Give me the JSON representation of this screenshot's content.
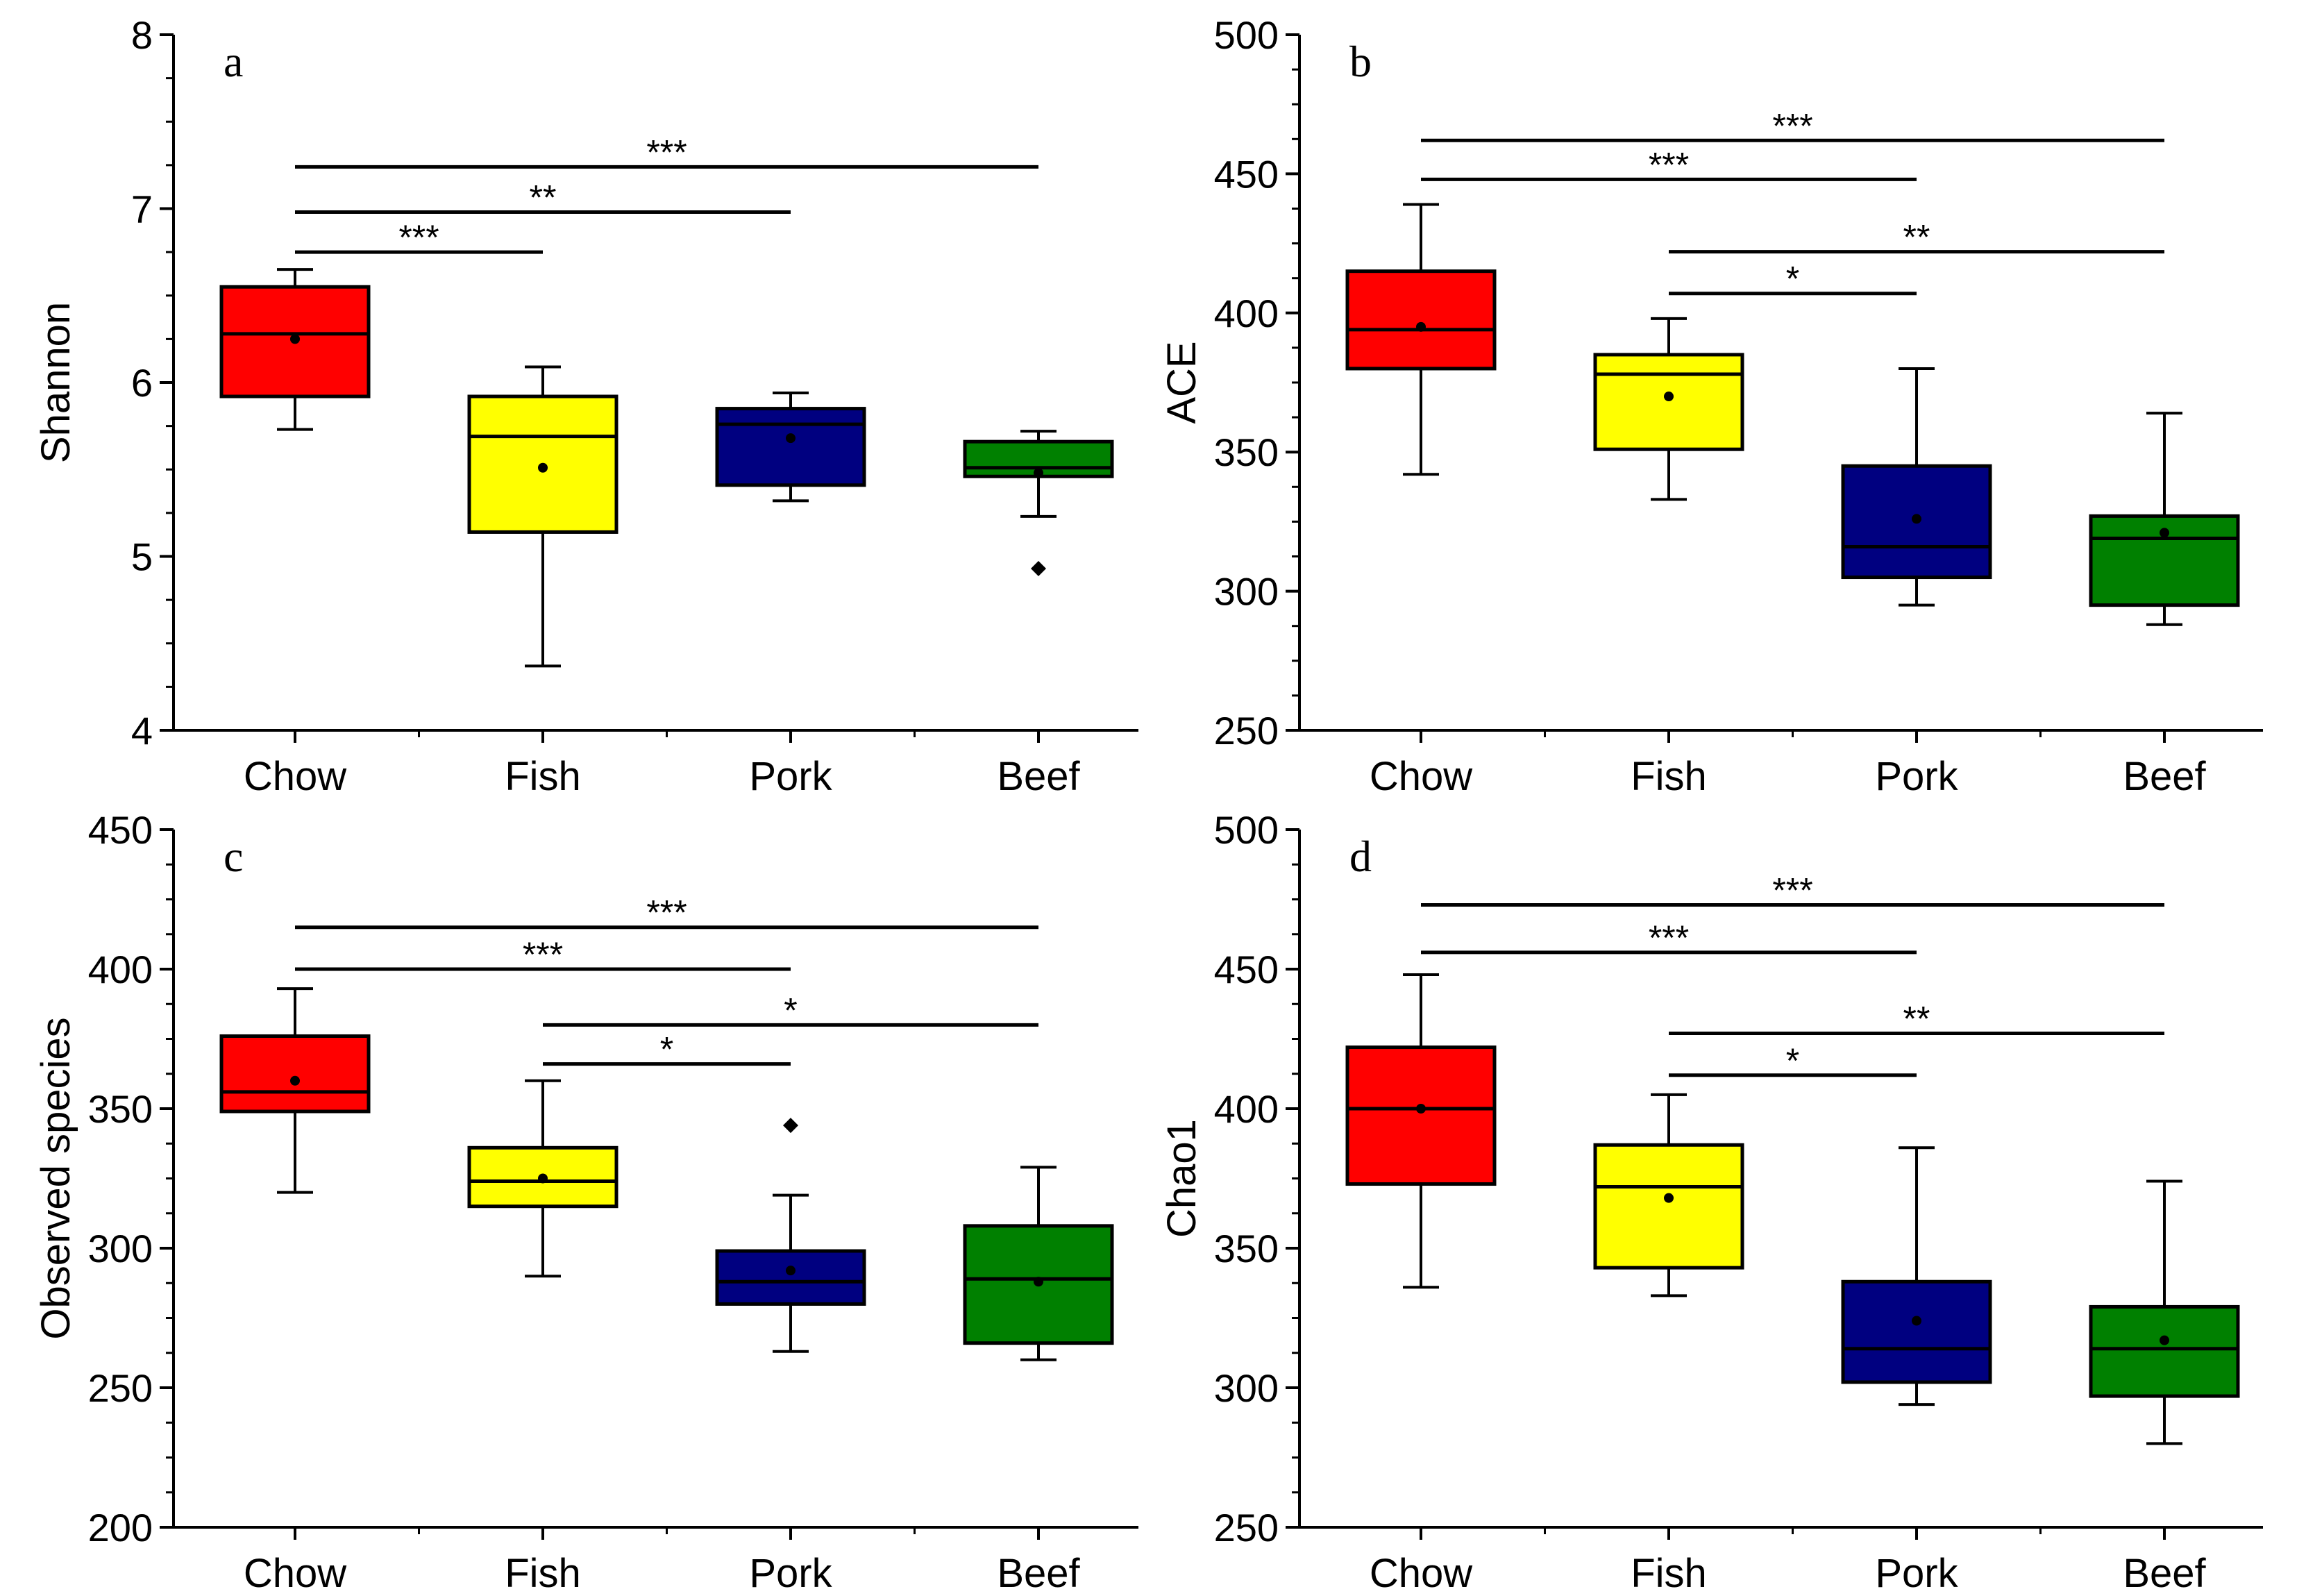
{
  "chart_data": [
    {
      "type": "box",
      "panel": "a",
      "ylabel": "Shannon",
      "ylim": [
        4,
        8
      ],
      "ymajor": [
        4,
        5,
        6,
        7,
        8
      ],
      "categories": [
        "Chow",
        "Fish",
        "Pork",
        "Beef"
      ],
      "colors": [
        "#ff0000",
        "#ffff00",
        "#000080",
        "#008000"
      ],
      "boxes": [
        {
          "whisker_low": 5.73,
          "q1": 5.92,
          "median": 6.28,
          "q3": 6.55,
          "whisker_high": 6.65,
          "mean": 6.25,
          "outliers": []
        },
        {
          "whisker_low": 4.37,
          "q1": 5.14,
          "median": 5.69,
          "q3": 5.92,
          "whisker_high": 6.09,
          "mean": 5.51,
          "outliers": []
        },
        {
          "whisker_low": 5.32,
          "q1": 5.41,
          "median": 5.76,
          "q3": 5.85,
          "whisker_high": 5.94,
          "mean": 5.68,
          "outliers": []
        },
        {
          "whisker_low": 5.23,
          "q1": 5.46,
          "median": 5.51,
          "q3": 5.66,
          "whisker_high": 5.72,
          "mean": 5.48,
          "outliers": [
            4.93
          ]
        }
      ],
      "significance": [
        {
          "from": 0,
          "to": 1,
          "y": 6.75,
          "label": "***"
        },
        {
          "from": 0,
          "to": 2,
          "y": 6.98,
          "label": "**"
        },
        {
          "from": 0,
          "to": 3,
          "y": 7.24,
          "label": "***"
        }
      ]
    },
    {
      "type": "box",
      "panel": "b",
      "ylabel": "ACE",
      "ylim": [
        250,
        500
      ],
      "ymajor": [
        250,
        300,
        350,
        400,
        450,
        500
      ],
      "categories": [
        "Chow",
        "Fish",
        "Pork",
        "Beef"
      ],
      "colors": [
        "#ff0000",
        "#ffff00",
        "#000080",
        "#008000"
      ],
      "boxes": [
        {
          "whisker_low": 342,
          "q1": 380,
          "median": 394,
          "q3": 415,
          "whisker_high": 439,
          "mean": 395,
          "outliers": []
        },
        {
          "whisker_low": 333,
          "q1": 351,
          "median": 378,
          "q3": 385,
          "whisker_high": 398,
          "mean": 370,
          "outliers": []
        },
        {
          "whisker_low": 295,
          "q1": 305,
          "median": 316,
          "q3": 345,
          "whisker_high": 380,
          "mean": 326,
          "outliers": []
        },
        {
          "whisker_low": 288,
          "q1": 295,
          "median": 319,
          "q3": 327,
          "whisker_high": 364,
          "mean": 321,
          "outliers": []
        }
      ],
      "significance": [
        {
          "from": 1,
          "to": 2,
          "y": 407,
          "label": "*"
        },
        {
          "from": 1,
          "to": 3,
          "y": 422,
          "label": "**"
        },
        {
          "from": 0,
          "to": 2,
          "y": 448,
          "label": "***"
        },
        {
          "from": 0,
          "to": 3,
          "y": 462,
          "label": "***"
        }
      ]
    },
    {
      "type": "box",
      "panel": "c",
      "ylabel": "Observed species",
      "ylim": [
        200,
        450
      ],
      "ymajor": [
        200,
        250,
        300,
        350,
        400,
        450
      ],
      "categories": [
        "Chow",
        "Fish",
        "Pork",
        "Beef"
      ],
      "colors": [
        "#ff0000",
        "#ffff00",
        "#000080",
        "#008000"
      ],
      "boxes": [
        {
          "whisker_low": 320,
          "q1": 349,
          "median": 356,
          "q3": 376,
          "whisker_high": 393,
          "mean": 360,
          "outliers": []
        },
        {
          "whisker_low": 290,
          "q1": 315,
          "median": 324,
          "q3": 336,
          "whisker_high": 360,
          "mean": 325,
          "outliers": []
        },
        {
          "whisker_low": 263,
          "q1": 280,
          "median": 288,
          "q3": 299,
          "whisker_high": 319,
          "mean": 292,
          "outliers": [
            344
          ]
        },
        {
          "whisker_low": 260,
          "q1": 266,
          "median": 289,
          "q3": 308,
          "whisker_high": 329,
          "mean": 288,
          "outliers": []
        }
      ],
      "significance": [
        {
          "from": 1,
          "to": 2,
          "y": 366,
          "label": "*"
        },
        {
          "from": 1,
          "to": 3,
          "y": 380,
          "label": "*"
        },
        {
          "from": 0,
          "to": 2,
          "y": 400,
          "label": "***"
        },
        {
          "from": 0,
          "to": 3,
          "y": 415,
          "label": "***"
        }
      ]
    },
    {
      "type": "box",
      "panel": "d",
      "ylabel": "Chao1",
      "ylim": [
        250,
        500
      ],
      "ymajor": [
        250,
        300,
        350,
        400,
        450,
        500
      ],
      "categories": [
        "Chow",
        "Fish",
        "Pork",
        "Beef"
      ],
      "colors": [
        "#ff0000",
        "#ffff00",
        "#000080",
        "#008000"
      ],
      "boxes": [
        {
          "whisker_low": 336,
          "q1": 373,
          "median": 400,
          "q3": 422,
          "whisker_high": 448,
          "mean": 400,
          "outliers": []
        },
        {
          "whisker_low": 333,
          "q1": 343,
          "median": 372,
          "q3": 387,
          "whisker_high": 405,
          "mean": 368,
          "outliers": []
        },
        {
          "whisker_low": 294,
          "q1": 302,
          "median": 314,
          "q3": 338,
          "whisker_high": 386,
          "mean": 324,
          "outliers": []
        },
        {
          "whisker_low": 280,
          "q1": 297,
          "median": 314,
          "q3": 329,
          "whisker_high": 374,
          "mean": 317,
          "outliers": []
        }
      ],
      "significance": [
        {
          "from": 1,
          "to": 2,
          "y": 412,
          "label": "*"
        },
        {
          "from": 1,
          "to": 3,
          "y": 427,
          "label": "**"
        },
        {
          "from": 0,
          "to": 2,
          "y": 456,
          "label": "***"
        },
        {
          "from": 0,
          "to": 3,
          "y": 473,
          "label": "***"
        }
      ]
    }
  ]
}
